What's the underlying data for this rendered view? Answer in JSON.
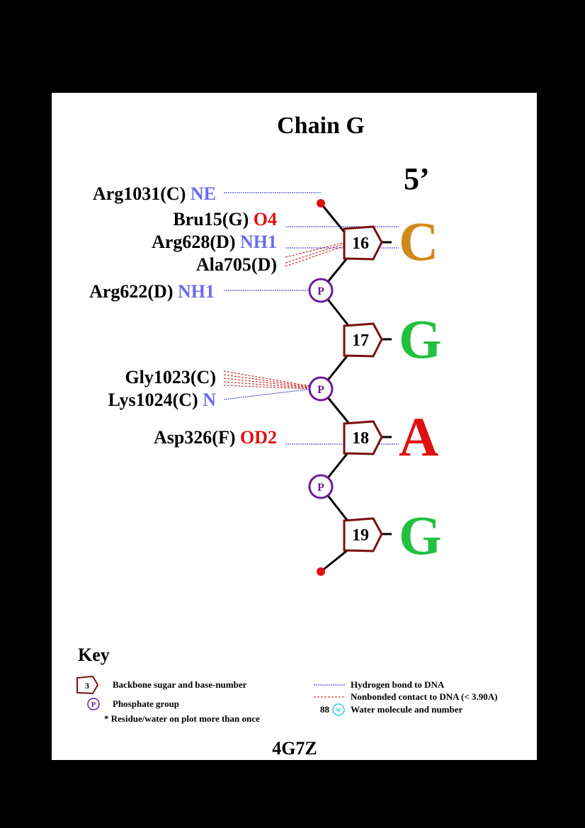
{
  "title": "Chain G",
  "five_prime": "5’",
  "pdb_id": "4G7Z",
  "colors": {
    "sugar": "#7a1010",
    "phosphate": "#6a1b9a",
    "hbond": "#2a2ad0",
    "nonbonded": "#c01010",
    "atom_blue": "#6a6af0",
    "atom_red": "#e01010",
    "base_C": "#d08a1a",
    "base_G": "#22c040",
    "base_A": "#e01010",
    "water": "#30c8e0"
  },
  "nucleotides": [
    {
      "number": "16",
      "base": "C"
    },
    {
      "number": "17",
      "base": "G"
    },
    {
      "number": "18",
      "base": "A"
    },
    {
      "number": "19",
      "base": "G"
    }
  ],
  "phosphates": [
    {
      "label": "P"
    },
    {
      "label": "P"
    },
    {
      "label": "P"
    }
  ],
  "residues": [
    {
      "residue": "Arg1031(C)",
      "atom": "NE",
      "atom_color": "blue",
      "contact": "hbond"
    },
    {
      "residue": "Bru15(G)",
      "atom": "O4",
      "atom_color": "red",
      "contact": "hbond"
    },
    {
      "residue": "Arg628(D)",
      "atom": "NH1",
      "atom_color": "blue",
      "contact": "hbond"
    },
    {
      "residue": "Ala705(D)",
      "atom": "",
      "atom_color": "",
      "contact": "nonbonded"
    },
    {
      "residue": "Arg622(D)",
      "atom": "NH1",
      "atom_color": "blue",
      "contact": "hbond"
    },
    {
      "residue": "Gly1023(C)",
      "atom": "",
      "atom_color": "",
      "contact": "nonbonded"
    },
    {
      "residue": "Lys1024(C)",
      "atom": "N",
      "atom_color": "blue",
      "contact": "hbond"
    },
    {
      "residue": "Asp326(F)",
      "atom": "OD2",
      "atom_color": "red",
      "contact": "hbond"
    }
  ],
  "key": {
    "title": "Key",
    "sugar_example": "3",
    "sugar_label": "Backbone sugar and base-number",
    "phosphate_example": "P",
    "phosphate_label": "Phosphate group",
    "repeat_note": "* Residue/water on plot more than once",
    "hbond_label": "Hydrogen bond to DNA",
    "nonbonded_label": "Nonbonded contact to DNA (< 3.90A)",
    "water_example_number": "88",
    "water_example_icon": "W",
    "water_label": "Water molecule and number"
  }
}
